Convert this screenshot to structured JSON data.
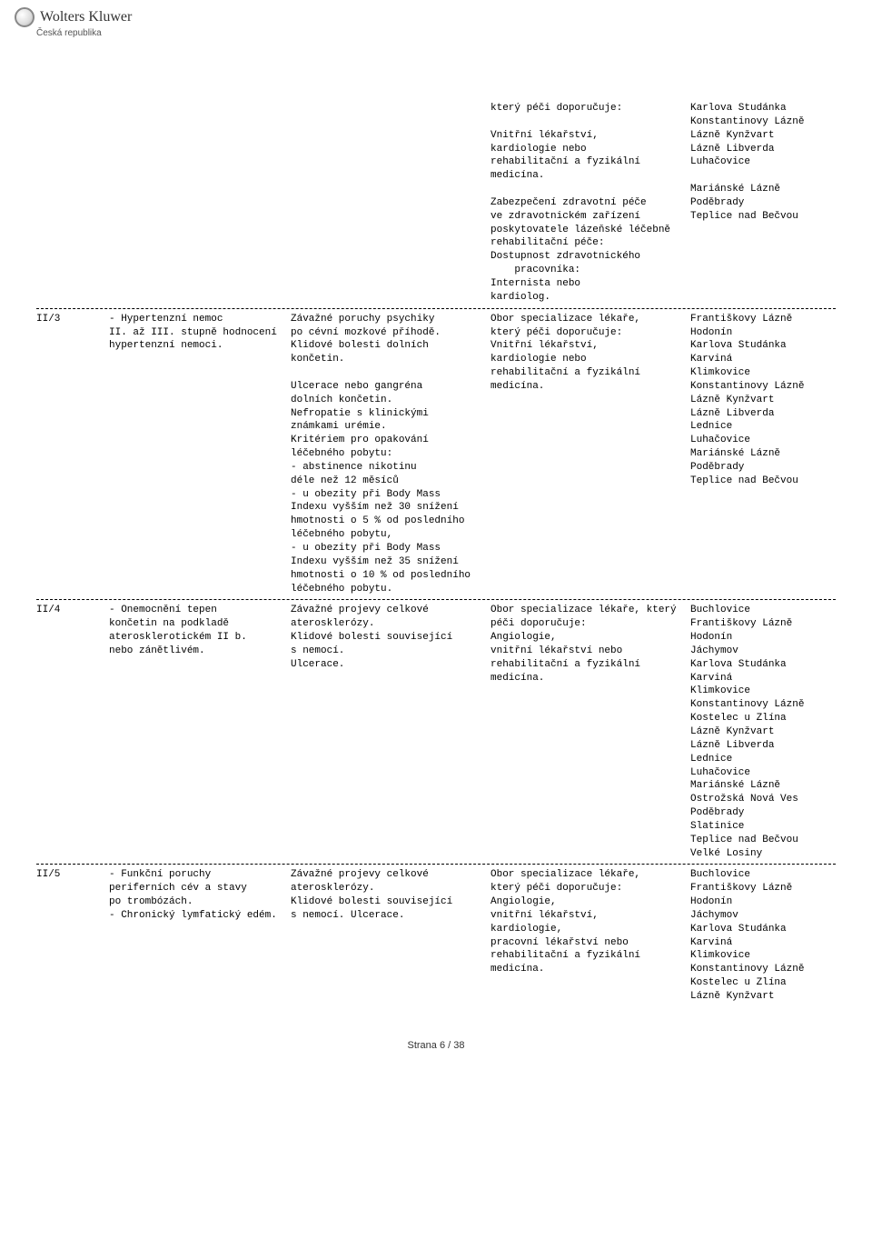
{
  "header": {
    "brand": "Wolters Kluwer",
    "sub": "Česká republika"
  },
  "rows": [
    {
      "code": "",
      "name": "",
      "criteria": "",
      "spec": "který péči doporučuje:\n\nVnitřní lékařství,\nkardiologie nebo\nrehabilitační a fyzikální\nmedicína.\n\nZabezpečení zdravotní péče\nve zdravotnickém zařízení\nposkytovatele lázeňské léčebně\nrehabilitační péče:\nDostupnost zdravotnického\n    pracovníka:\nInternista nebo\nkardiolog.",
      "spa": "Karlova Studánka\nKonstantinovy Lázně\nLázně Kynžvart\nLázně Libverda\nLuhačovice\n\nMariánské Lázně\nPoděbrady\nTeplice nad Bečvou"
    },
    {
      "code": "II/3",
      "name": "- Hypertenzní nemoc\nII. až III. stupně hodnocení\nhypertenzní nemoci.",
      "criteria": "Závažné poruchy psychiky\npo cévní mozkové příhodě.\nKlidové bolesti dolních\nkončetin.\n\nUlcerace nebo gangréna\ndolních končetin.\nNefropatie s klinickými\nznámkami urémie.\nKritériem pro opakování\nléčebného pobytu:\n- abstinence nikotinu\ndéle než 12 měsíců\n- u obezity při Body Mass\nIndexu vyšším než 30 snížení\nhmotnosti o 5 % od posledního\nléčebného pobytu,\n- u obezity při Body Mass\nIndexu vyšším než 35 snížení\nhmotnosti o 10 % od posledního\nléčebného pobytu.",
      "spec": "Obor specializace lékaře,\nkterý péči doporučuje:\nVnitřní lékařství,\nkardiologie nebo\nrehabilitační a fyzikální\nmedicína.",
      "spa": "Františkovy Lázně\nHodonín\nKarlova Studánka\nKarviná\nKlimkovice\nKonstantinovy Lázně\nLázně Kynžvart\nLázně Libverda\nLednice\nLuhačovice\nMariánské Lázně\nPoděbrady\nTeplice nad Bečvou"
    },
    {
      "code": "II/4",
      "name": "- Onemocnění tepen\nkončetin na podkladě\naterosklerotickém II b.\nnebo zánětlivém.",
      "criteria": "Závažné projevy celkové\naterosklerózy.\nKlidové bolesti související\ns nemocí.\nUlcerace.",
      "spec": "Obor specializace lékaře, který\npéči doporučuje:\nAngiologie,\nvnitřní lékařství nebo\nrehabilitační a fyzikální\nmedicína.",
      "spa": "Buchlovice\nFrantiškovy Lázně\nHodonín\nJáchymov\nKarlova Studánka\nKarviná\nKlimkovice\nKonstantinovy Lázně\nKostelec u Zlína\nLázně Kynžvart\nLázně Libverda\nLednice\nLuhačovice\nMariánské Lázně\nOstrožská Nová Ves\nPoděbrady\nSlatinice\nTeplice nad Bečvou\nVelké Losiny"
    },
    {
      "code": "II/5",
      "name": "- Funkční poruchy\nperiferních cév a stavy\npo trombózách.\n- Chronický lymfatický edém.",
      "criteria": "Závažné projevy celkové\naterosklerózy.\nKlidové bolesti související\ns nemocí. Ulcerace.",
      "spec": "Obor specializace lékaře,\nkterý péči doporučuje:\nAngiologie,\nvnitřní lékařství,\nkardiologie,\npracovní lékařství nebo\nrehabilitační a fyzikální\nmedicína.",
      "spa": "Buchlovice\nFrantiškovy Lázně\nHodonín\nJáchymov\nKarlova Studánka\nKarviná\nKlimkovice\nKonstantinovy Lázně\nKostelec u Zlína\nLázně Kynžvart"
    }
  ],
  "footer": "Strana 6 / 38"
}
